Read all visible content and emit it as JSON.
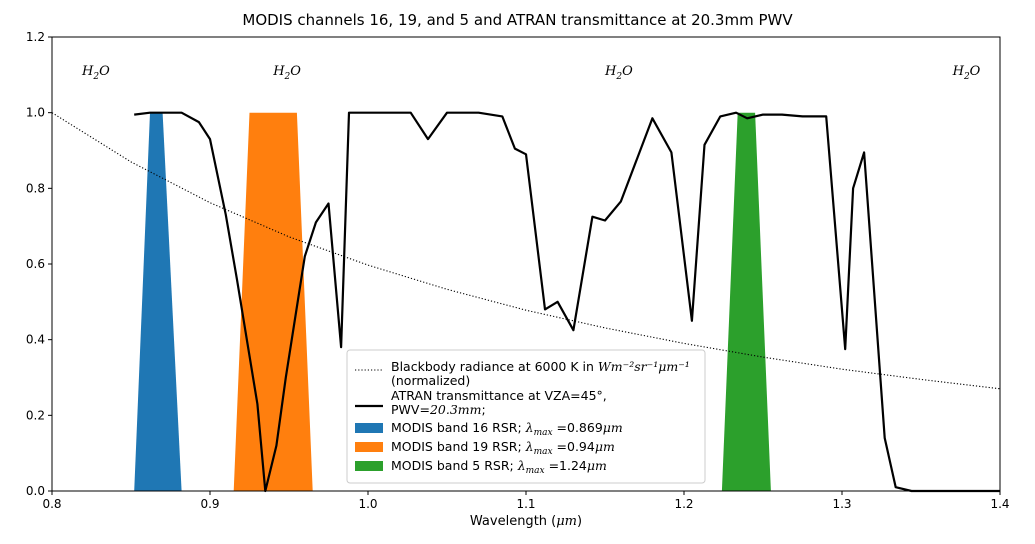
{
  "chart_data": {
    "type": "area",
    "title": "MODIS channels 16, 19, and 5 and ATRAN transmittance at 20.3mm PWV",
    "xlabel": "Wavelength ($\\mu m$)",
    "xlim": [
      0.8,
      1.4
    ],
    "ylim": [
      0.0,
      1.2
    ],
    "xticks": [
      0.8,
      0.9,
      1.0,
      1.1,
      1.2,
      1.3,
      1.4
    ],
    "xtick_labels": [
      "0.8",
      "0.9",
      "1.0",
      "1.1",
      "1.2",
      "1.3",
      "1.4"
    ],
    "yticks": [
      0.0,
      0.2,
      0.4,
      0.6,
      0.8,
      1.0,
      1.2
    ],
    "ytick_labels": [
      "0.0",
      "0.2",
      "0.4",
      "0.6",
      "0.8",
      "1.0",
      "1.2"
    ],
    "grid": false,
    "legend_position": "lower-center",
    "annotations": [
      {
        "text": "$H_2O$",
        "x": 0.819,
        "y": 1.11
      },
      {
        "text": "$H_2O$",
        "x": 0.94,
        "y": 1.11
      },
      {
        "text": "$H_2O$",
        "x": 1.15,
        "y": 1.11
      },
      {
        "text": "$H_2O$",
        "x": 1.37,
        "y": 1.11
      }
    ],
    "series": [
      {
        "name": "Blackbody radiance at 6000 K in $Wm^{-2}sr^{-1}\\mu m^{-1}$ (normalized)",
        "kind": "line",
        "style": "dotted",
        "color": "#000000",
        "x": [
          0.8,
          0.85,
          0.9,
          0.95,
          1.0,
          1.05,
          1.1,
          1.15,
          1.2,
          1.25,
          1.3,
          1.35,
          1.4
        ],
        "y": [
          1.0,
          0.87,
          0.762,
          0.672,
          0.597,
          0.533,
          0.478,
          0.431,
          0.39,
          0.354,
          0.322,
          0.295,
          0.27
        ]
      },
      {
        "name": "ATRAN transmittance at VZA=45°, PWV=$20.3mm$;",
        "kind": "line",
        "style": "solid",
        "color": "#000000",
        "x": [
          0.852,
          0.862,
          0.872,
          0.882,
          0.893,
          0.9,
          0.91,
          0.917,
          0.93,
          0.935,
          0.942,
          0.948,
          0.96,
          0.967,
          0.975,
          0.983,
          0.988,
          1.0,
          1.015,
          1.027,
          1.038,
          1.05,
          1.07,
          1.085,
          1.093,
          1.1,
          1.112,
          1.12,
          1.13,
          1.142,
          1.15,
          1.16,
          1.18,
          1.192,
          1.205,
          1.213,
          1.223,
          1.233,
          1.24,
          1.25,
          1.262,
          1.275,
          1.29,
          1.302,
          1.307,
          1.314,
          1.327,
          1.334,
          1.344,
          1.357,
          1.37,
          1.39,
          1.4
        ],
        "y": [
          0.995,
          1.0,
          1.0,
          1.0,
          0.975,
          0.93,
          0.73,
          0.56,
          0.23,
          0.0,
          0.12,
          0.3,
          0.62,
          0.71,
          0.76,
          0.38,
          1.0,
          1.0,
          1.0,
          1.0,
          0.93,
          1.0,
          1.0,
          0.99,
          0.905,
          0.89,
          0.48,
          0.5,
          0.425,
          0.725,
          0.715,
          0.765,
          0.985,
          0.895,
          0.45,
          0.915,
          0.99,
          1.0,
          0.985,
          0.995,
          0.995,
          0.99,
          0.99,
          0.375,
          0.8,
          0.895,
          0.14,
          0.01,
          0.0,
          0.0,
          0.0,
          0.0,
          0.0
        ]
      },
      {
        "name": "MODIS band 16 RSR; $\\lambda_{max}$ =0.869$\\mu m$",
        "kind": "area",
        "color": "#1f77b4",
        "x": [
          0.852,
          0.862,
          0.87,
          0.882
        ],
        "y": [
          0.0,
          1.0,
          1.0,
          0.0
        ]
      },
      {
        "name": "MODIS band 19 RSR; $\\lambda_{max}$ =0.94$\\mu m$",
        "kind": "area",
        "color": "#ff7f0e",
        "x": [
          0.915,
          0.925,
          0.955,
          0.965
        ],
        "y": [
          0.0,
          1.0,
          1.0,
          0.0
        ]
      },
      {
        "name": "MODIS band 5 RSR; $\\lambda_{max}$ =1.24$\\mu m$",
        "kind": "area",
        "color": "#2ca02c",
        "x": [
          1.224,
          1.234,
          1.245,
          1.255
        ],
        "y": [
          0.0,
          1.0,
          1.0,
          0.0
        ]
      }
    ],
    "legend": [
      {
        "kind": "dotted",
        "color": "#000000",
        "line1": "Blackbody radiance at 6000 K in ",
        "math1": "Wm⁻²sr⁻¹μm⁻¹",
        "line2": "(normalized)"
      },
      {
        "kind": "solid",
        "color": "#000000",
        "line1": "ATRAN transmittance at VZA=45°,",
        "line2a": "PWV=",
        "math2": "20.3mm",
        "line2b": ";"
      },
      {
        "kind": "patch",
        "color": "#1f77b4",
        "pre": "MODIS band 16 RSR; ",
        "math": "λ",
        "sub": "max",
        "post": " =0.869",
        "unit": "μm"
      },
      {
        "kind": "patch",
        "color": "#ff7f0e",
        "pre": "MODIS band 19 RSR; ",
        "math": "λ",
        "sub": "max",
        "post": " =0.94",
        "unit": "μm"
      },
      {
        "kind": "patch",
        "color": "#2ca02c",
        "pre": "MODIS band 5 RSR; ",
        "math": "λ",
        "sub": "max",
        "post": " =1.24",
        "unit": "μm"
      }
    ],
    "xlabel_text": "Wavelength (",
    "xlabel_math": "μm",
    "xlabel_close": ")",
    "annotation_glyph": "H",
    "annotation_sub": "2",
    "annotation_tail": "O"
  }
}
